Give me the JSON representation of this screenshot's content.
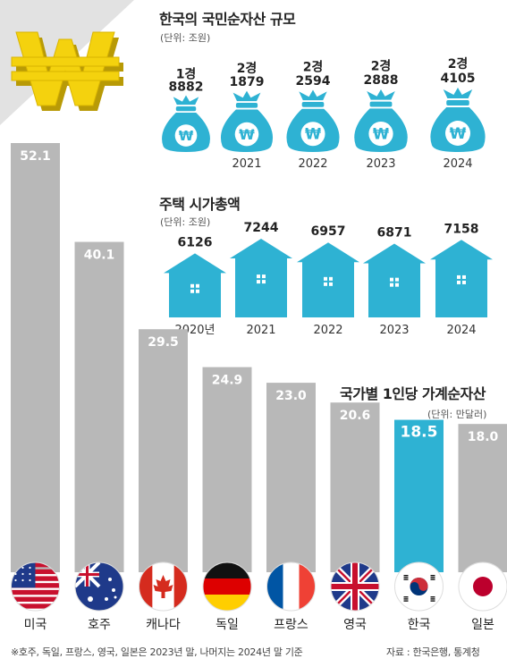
{
  "colors": {
    "teal": "#2eb2d3",
    "bar_gray": "#b8b8b8",
    "bar_highlight": "#2eb2d3",
    "won_gold": "#f4d20e",
    "corner_gray": "#e2e2e2"
  },
  "icons": {
    "corner": "won-sign-3d-icon",
    "wealth": "money-bag-won-icon",
    "housing": "house-icon"
  },
  "chart_data": [
    {
      "type": "bar",
      "title": "한국의 국민순자산 규모",
      "unit": "(단위: 조원)",
      "categories": [
        "",
        "2021",
        "2022",
        "2023",
        "2024"
      ],
      "value_labels": [
        [
          "1경",
          "8882"
        ],
        [
          "2경",
          "1879"
        ],
        [
          "2경",
          "2594"
        ],
        [
          "2경",
          "2888"
        ],
        [
          "2경",
          "4105"
        ]
      ],
      "values": [
        18882,
        21879,
        22594,
        22888,
        24105
      ]
    },
    {
      "type": "bar",
      "title": "주택 시가총액",
      "unit": "(단위: 조원)",
      "categories": [
        "2020년",
        "2021",
        "2022",
        "2023",
        "2024"
      ],
      "values": [
        6126,
        7244,
        6957,
        6871,
        7158
      ]
    },
    {
      "type": "bar",
      "title": "국가별 1인당 가계순자산",
      "unit": "(단위: 만달러)",
      "categories": [
        "미국",
        "호주",
        "캐나다",
        "독일",
        "프랑스",
        "영국",
        "한국",
        "일본"
      ],
      "values": [
        52.1,
        40.1,
        29.5,
        24.9,
        23.0,
        20.6,
        18.5,
        18.0
      ],
      "value_labels": [
        "52.1",
        "40.1",
        "29.5",
        "24.9",
        "23.0",
        "20.6",
        "18.5",
        "18.0"
      ],
      "highlight": "한국",
      "flag_icons": [
        "us-flag-icon",
        "australia-flag-icon",
        "canada-flag-icon",
        "germany-flag-icon",
        "france-flag-icon",
        "uk-flag-icon",
        "korea-flag-icon",
        "japan-flag-icon"
      ]
    }
  ],
  "footer": {
    "note": "※호주, 독일, 프랑스, 영국, 일본은 2023년 말, 나머지는 2024년 말 기준",
    "source": "자료 : 한국은행, 통계청"
  }
}
